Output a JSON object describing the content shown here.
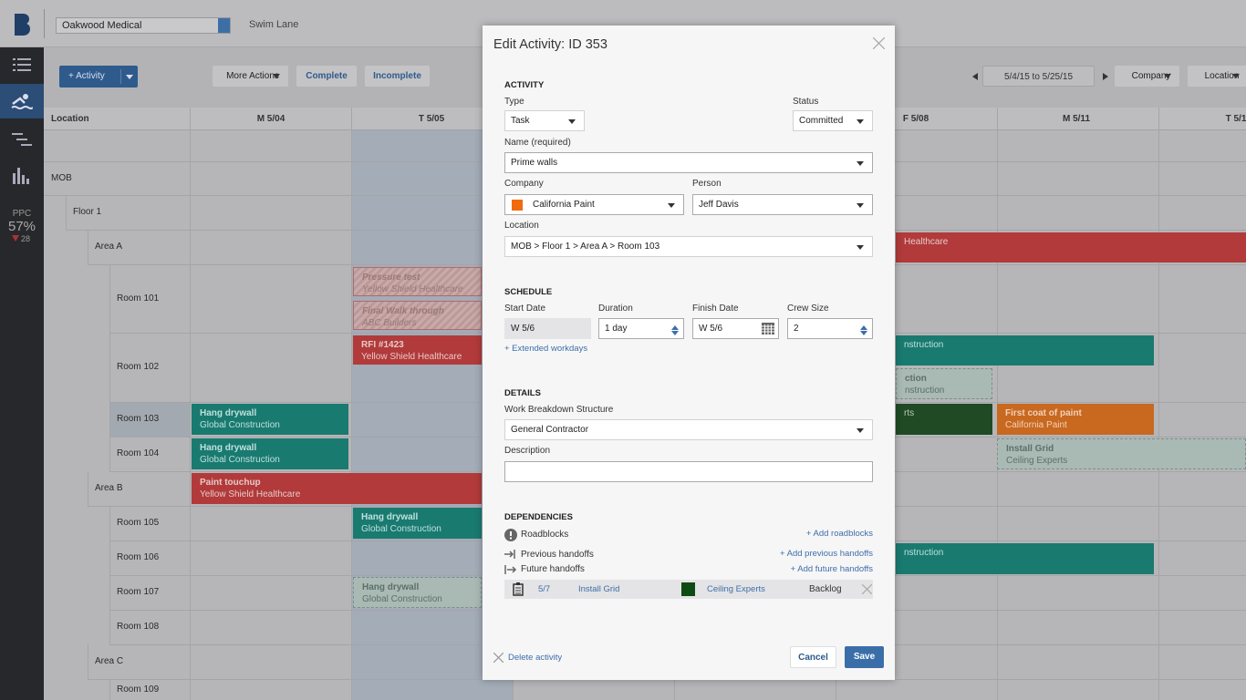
{
  "app": {
    "org": "Oakwood Medical",
    "view": "Swim Lane",
    "ppc": {
      "label": "PPC",
      "value": "57%",
      "change": "28"
    }
  },
  "toolbar": {
    "add_activity": "+ Activity",
    "more_actions": "More Actions",
    "complete": "Complete",
    "incomplete": "Incomplete",
    "date_range": "5/4/15 to 5/25/15",
    "company": "Company",
    "location": "Location"
  },
  "grid": {
    "location_header": "Location",
    "days": [
      "M 5/04",
      "T 5/05",
      "F 5/08",
      "M 5/11",
      "T 5/1"
    ],
    "rows": [
      "MOB",
      "Floor 1",
      "Area A",
      "Room 101",
      "Room 102",
      "Room 103",
      "Room 104",
      "Area B",
      "Room 105",
      "Room 106",
      "Room 107",
      "Room 108",
      "Area C",
      "Room 109"
    ],
    "activities": [
      {
        "title": "Pressure test",
        "company": "Yellow Shield Healthcare"
      },
      {
        "title": "Final Walk through",
        "company": "ABC Builders"
      },
      {
        "title": "RFI #1423",
        "company": "Yellow Shield Healthcare"
      },
      {
        "title": "Hang drywall",
        "company": "Global Construction"
      },
      {
        "title": "Hang drywall",
        "company": "Global Construction"
      },
      {
        "title": "Paint touchup",
        "company": "Yellow Shield Healthcare"
      },
      {
        "title": "Hang drywall",
        "company": "Global Construction"
      },
      {
        "title": "Hang drywall",
        "company": "Global Construction"
      },
      {
        "company": "Healthcare"
      },
      {
        "company": "nstruction"
      },
      {
        "title": "ction",
        "company": "nstruction"
      },
      {
        "company": "rts"
      },
      {
        "title": "First coat of paint",
        "company": "California Paint"
      },
      {
        "title": "Install Grid",
        "company": "Ceiling Experts"
      },
      {
        "company": "nstruction"
      }
    ]
  },
  "modal": {
    "title": "Edit Activity: ID 353",
    "activity": {
      "heading": "ACTIVITY",
      "type_label": "Type",
      "type": "Task",
      "status_label": "Status",
      "status": "Committed",
      "name_label": "Name (required)",
      "name": "Prime walls",
      "company_label": "Company",
      "company": "California Paint",
      "person_label": "Person",
      "person": "Jeff Davis",
      "location_label": "Location",
      "location": "MOB > Floor 1 > Area A > Room 103"
    },
    "schedule": {
      "heading": "SCHEDULE",
      "start_label": "Start Date",
      "start": "W 5/6",
      "duration_label": "Duration",
      "duration": "1 day",
      "finish_label": "Finish Date",
      "finish": "W 5/6",
      "crew_label": "Crew Size",
      "crew": "2",
      "extended": "+ Extended workdays"
    },
    "details": {
      "heading": "DETAILS",
      "wbs_label": "Work Breakdown Structure",
      "wbs": "General Contractor",
      "description_label": "Description"
    },
    "dependencies": {
      "heading": "DEPENDENCIES",
      "roadblocks": "Roadblocks",
      "add_roadblocks": "+ Add roadblocks",
      "previous": "Previous handoffs",
      "add_previous": "+ Add previous handoffs",
      "future": "Future handoffs",
      "add_future": "+ Add future handoffs",
      "handoff": {
        "date": "5/7",
        "activity": "Install Grid",
        "company": "Ceiling Experts",
        "status": "Backlog"
      }
    },
    "footer": {
      "delete": "Delete activity",
      "cancel": "Cancel",
      "save": "Save"
    }
  }
}
